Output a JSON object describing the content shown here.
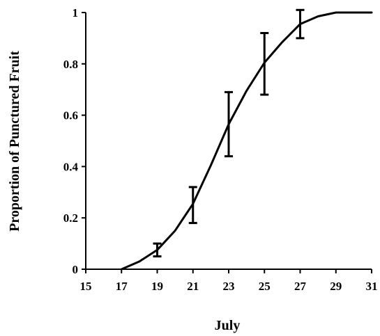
{
  "chart_data": {
    "type": "line",
    "title": "",
    "xlabel": "July",
    "ylabel": "Proportion of Punctured Fruit",
    "xlim": [
      15,
      31
    ],
    "ylim": [
      0,
      1
    ],
    "x_ticks": [
      15,
      17,
      19,
      21,
      23,
      25,
      27,
      29,
      31
    ],
    "y_ticks": [
      0,
      0.2,
      0.4,
      0.6,
      0.8,
      1
    ],
    "y_tick_labels": [
      "0",
      "0.2",
      "0.4",
      "0.6",
      "0.8",
      "1"
    ],
    "grid": false,
    "legend": "none",
    "line_color": "#000000",
    "series": [
      {
        "name": "",
        "curve": [
          [
            17,
            0.0
          ],
          [
            18,
            0.03
          ],
          [
            19,
            0.075
          ],
          [
            20,
            0.15
          ],
          [
            21,
            0.255
          ],
          [
            22,
            0.405
          ],
          [
            23,
            0.565
          ],
          [
            24,
            0.695
          ],
          [
            25,
            0.805
          ],
          [
            26,
            0.885
          ],
          [
            27,
            0.955
          ],
          [
            28,
            0.985
          ],
          [
            29,
            1.0
          ],
          [
            30,
            1.0
          ],
          [
            31,
            1.0
          ]
        ],
        "points": [
          {
            "x": 19,
            "y": 0.075,
            "low": 0.05,
            "high": 0.1
          },
          {
            "x": 21,
            "y": 0.255,
            "low": 0.18,
            "high": 0.32
          },
          {
            "x": 23,
            "y": 0.565,
            "low": 0.44,
            "high": 0.69
          },
          {
            "x": 25,
            "y": 0.805,
            "low": 0.68,
            "high": 0.92
          },
          {
            "x": 27,
            "y": 0.955,
            "low": 0.9,
            "high": 1.01
          }
        ]
      }
    ]
  }
}
